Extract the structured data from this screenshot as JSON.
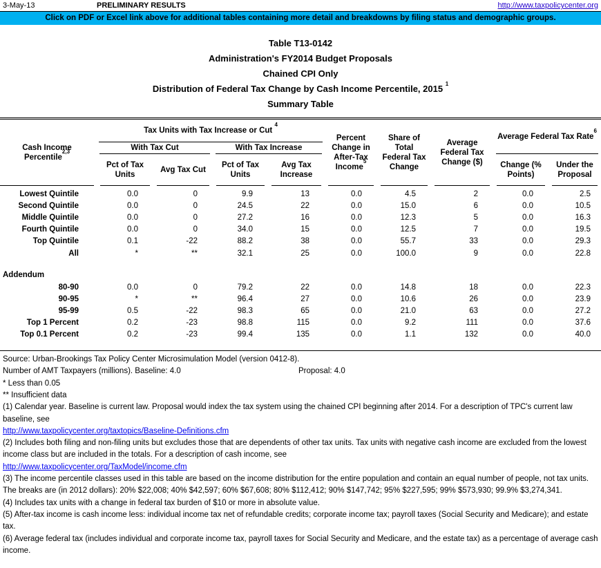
{
  "page": {
    "date": "3-May-13",
    "preliminary": "PRELIMINARY RESULTS",
    "url": "http://www.taxpolicycenter.org",
    "banner": "Click on PDF or Excel link above for additional tables containing more detail and breakdowns by filing status and demographic groups.",
    "colors": {
      "banner_bg": "#00B0F0",
      "link_blue": "#0000EE",
      "header_link_blue": "#2200CC"
    }
  },
  "title": {
    "line1": "Table T13-0142",
    "line2": "Administration's FY2014 Budget Proposals",
    "line3": "Chained CPI Only",
    "line4": "Distribution of Federal Tax Change by Cash Income Percentile, 2015 ",
    "line4_sup": "1",
    "line5": "Summary Table"
  },
  "table": {
    "header": {
      "col_label": "Cash Income Percentile",
      "col_label_sup": "2,3",
      "group_tax_units": "Tax Units with Tax Increase or Cut ",
      "group_tax_units_sup": "4",
      "group_cut": "With Tax Cut",
      "group_increase": "With Tax Increase",
      "pct_units_cut": "Pct of Tax Units",
      "avg_cut": "Avg Tax Cut",
      "pct_units_inc": "Pct of Tax Units",
      "avg_inc": "Avg Tax Increase",
      "pct_change_ati": "Percent Change in After-Tax Income",
      "pct_change_ati_sup": "5",
      "share_total": "Share of Total Federal Tax Change",
      "avg_fed_change": "Average Federal Tax Change ($)",
      "group_rate": "Average Federal Tax Rate",
      "group_rate_sup": "6",
      "rate_change": "Change (% Points)",
      "rate_under": "Under the Proposal"
    },
    "rows": [
      {
        "label": "Lowest Quintile",
        "values": [
          "0.0",
          "0",
          "9.9",
          "13",
          "0.0",
          "4.5",
          "2",
          "0.0",
          "2.5"
        ]
      },
      {
        "label": "Second Quintile",
        "values": [
          "0.0",
          "0",
          "24.5",
          "22",
          "0.0",
          "15.0",
          "6",
          "0.0",
          "10.5"
        ]
      },
      {
        "label": "Middle Quintile",
        "values": [
          "0.0",
          "0",
          "27.2",
          "16",
          "0.0",
          "12.3",
          "5",
          "0.0",
          "16.3"
        ]
      },
      {
        "label": "Fourth Quintile",
        "values": [
          "0.0",
          "0",
          "34.0",
          "15",
          "0.0",
          "12.5",
          "7",
          "0.0",
          "19.5"
        ]
      },
      {
        "label": "Top Quintile",
        "values": [
          "0.1",
          "-22",
          "88.2",
          "38",
          "0.0",
          "55.7",
          "33",
          "0.0",
          "29.3"
        ]
      },
      {
        "label": "All",
        "values": [
          "*",
          "**",
          "32.1",
          "25",
          "0.0",
          "100.0",
          "9",
          "0.0",
          "22.8"
        ]
      }
    ],
    "addendum_label": "Addendum",
    "addendum_rows": [
      {
        "label": "80-90",
        "values": [
          "0.0",
          "0",
          "79.2",
          "22",
          "0.0",
          "14.8",
          "18",
          "0.0",
          "22.3"
        ]
      },
      {
        "label": "90-95",
        "values": [
          "*",
          "**",
          "96.4",
          "27",
          "0.0",
          "10.6",
          "26",
          "0.0",
          "23.9"
        ]
      },
      {
        "label": "95-99",
        "values": [
          "0.5",
          "-22",
          "98.3",
          "65",
          "0.0",
          "21.0",
          "63",
          "0.0",
          "27.2"
        ]
      },
      {
        "label": "Top 1 Percent",
        "values": [
          "0.2",
          "-23",
          "98.8",
          "115",
          "0.0",
          "9.2",
          "111",
          "0.0",
          "37.6"
        ]
      },
      {
        "label": "Top 0.1 Percent",
        "values": [
          "0.2",
          "-23",
          "99.4",
          "135",
          "0.0",
          "1.1",
          "132",
          "0.0",
          "40.0"
        ]
      }
    ]
  },
  "notes": {
    "source": "Source: Urban-Brookings Tax Policy Center Microsimulation Model (version 0412-8).",
    "amt_label": "Number of AMT Taxpayers (millions).  Baseline:  4.0",
    "amt_proposal": "Proposal: 4.0",
    "star": "* Less than 0.05",
    "dstar": "** Insufficient data",
    "n1": "(1) Calendar year. Baseline is current law.  Proposal would index the tax system using the chained CPI beginning after 2014.  For a description of TPC's current law baseline, see",
    "link1": "http://www.taxpolicycenter.org/taxtopics/Baseline-Definitions.cfm",
    "n2": "(2) Includes both filing and non-filing units but excludes those that are dependents of other tax units. Tax units with negative cash income are excluded from the lowest income class but are included in the totals. For a description of cash income, see",
    "link2": "http://www.taxpolicycenter.org/TaxModel/income.cfm",
    "n3": "(3) The income percentile classes used in this table are based on the income distribution for the entire population and contain an equal number of people, not tax units. The breaks are (in 2012 dollars): 20% $22,008; 40% $42,597; 60% $67,608; 80% $112,412; 90% $147,742; 95% $227,595; 99% $573,930; 99.9% $3,274,341.",
    "n4": "(4) Includes tax units with a change in federal tax burden of $10 or more in absolute value.",
    "n5": "(5) After-tax income is cash income less: individual income tax net of refundable credits; corporate income tax; payroll taxes (Social Security and Medicare); and estate tax.",
    "n6": "(6) Average federal tax (includes individual and corporate income tax, payroll taxes for Social Security and Medicare, and the estate tax) as a percentage of average cash income."
  }
}
